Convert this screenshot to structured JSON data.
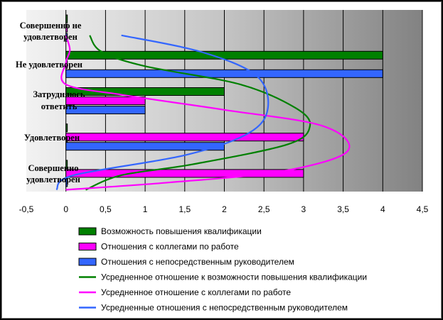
{
  "chart_data": {
    "type": "bar",
    "orientation": "horizontal",
    "categories": [
      [
        "Совершенно",
        "удовлетворен"
      ],
      [
        "Удовлетворен"
      ],
      [
        "Затрудняюсь",
        "ответить"
      ],
      [
        "Не удовлетворен"
      ],
      [
        "Совершенно не",
        "удовлетворен"
      ]
    ],
    "xlim": [
      -0.5,
      4.5
    ],
    "xticks": [
      "-0,5",
      "0",
      "0,5",
      "1",
      "1,5",
      "2",
      "2,5",
      "3",
      "3,5",
      "4",
      "4,5"
    ],
    "xtick_values": [
      -0.5,
      0,
      0.5,
      1,
      1.5,
      2,
      2.5,
      3,
      3.5,
      4,
      4.5
    ],
    "series": [
      {
        "name": "Возможность повышения квалификации",
        "color": "#008000",
        "values": [
          0,
          0,
          2,
          4,
          0
        ]
      },
      {
        "name": "Отношения с коллегами по работе",
        "color": "#ff00ff",
        "values": [
          3,
          3,
          1,
          0,
          0
        ]
      },
      {
        "name": "Отношения с непосредственным руководителем",
        "color": "#3366ff",
        "values": [
          0,
          2,
          1,
          4,
          0
        ]
      }
    ],
    "lines": [
      {
        "name": "Усредненное отношение к возможности повышения квалификации",
        "color": "#008000",
        "points": [
          [
            0.25,
            0.05
          ],
          [
            0.7,
            0.45
          ],
          [
            1.6,
            0.75
          ],
          [
            2.8,
            1.3
          ],
          [
            3.08,
            1.8
          ],
          [
            2.9,
            2.3
          ],
          [
            2.2,
            2.95
          ],
          [
            1.0,
            3.45
          ],
          [
            0.45,
            3.85
          ],
          [
            0.3,
            4.3
          ]
        ]
      },
      {
        "name": "Усредненное отношение с коллегами по работе",
        "color": "#ff00ff",
        "points": [
          [
            0.0,
            0.05
          ],
          [
            1.3,
            0.25
          ],
          [
            2.7,
            0.55
          ],
          [
            3.55,
            1.1
          ],
          [
            3.25,
            1.8
          ],
          [
            2.0,
            2.25
          ],
          [
            0.75,
            2.65
          ],
          [
            0.0,
            2.95
          ],
          [
            0.0,
            3.55
          ],
          [
            0.05,
            3.9
          ],
          [
            0.0,
            4.3
          ]
        ]
      },
      {
        "name": "Усредненные отношения с непосредственным руководителем",
        "color": "#3366ff",
        "points": [
          [
            -0.12,
            0.05
          ],
          [
            0.1,
            0.45
          ],
          [
            1.5,
            1.0
          ],
          [
            2.3,
            1.6
          ],
          [
            2.55,
            2.3
          ],
          [
            2.4,
            3.2
          ],
          [
            1.7,
            3.85
          ],
          [
            0.7,
            4.3
          ]
        ]
      }
    ]
  }
}
